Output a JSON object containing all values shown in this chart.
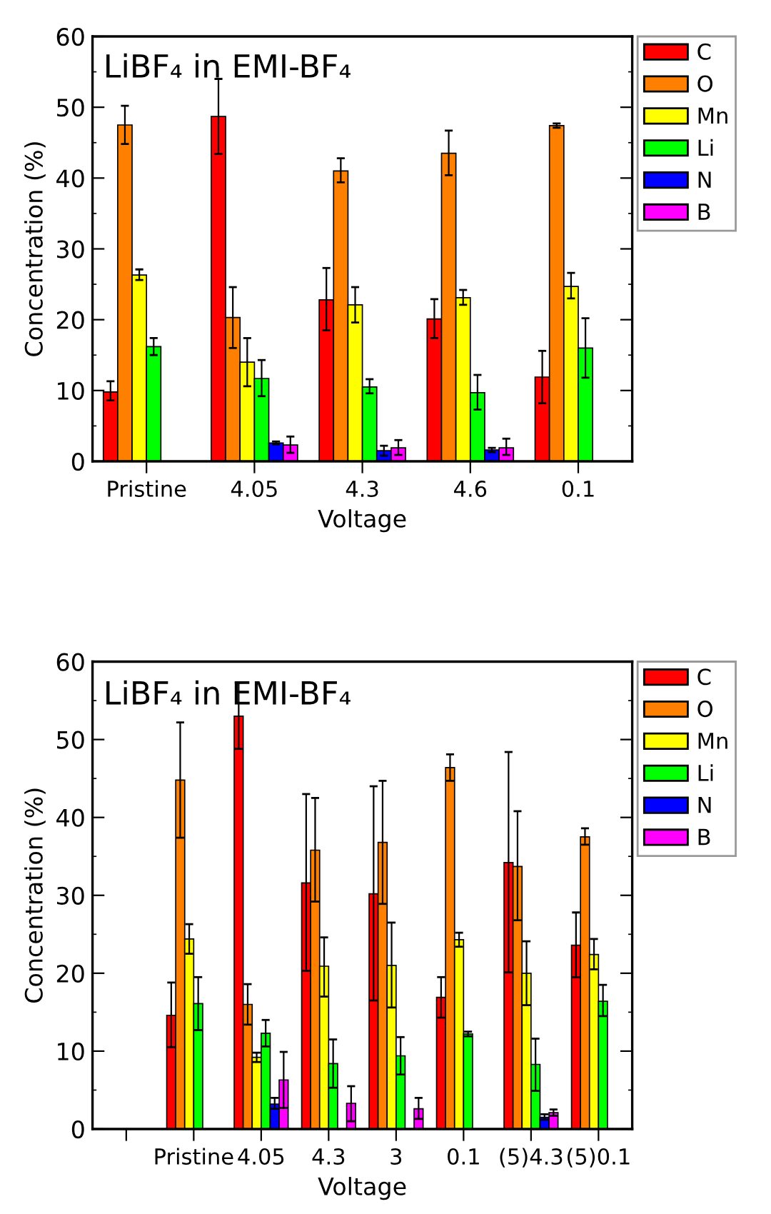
{
  "chart_data": [
    {
      "type": "bar",
      "title": "LiBF₄ in EMI-BF₄",
      "xlabel": "Voltage",
      "ylabel": "Concentration (%)",
      "categories": [
        "Pristine",
        "4.05",
        "4.3",
        "4.6",
        "0.1"
      ],
      "ylim": [
        0,
        60
      ],
      "yticks": [
        0,
        10,
        20,
        30,
        40,
        50,
        60
      ],
      "legend": "right",
      "grid": false,
      "series": [
        {
          "name": "C",
          "color": "#ff0000",
          "values": [
            9.8,
            48.7,
            22.8,
            20.1,
            11.9
          ],
          "errors": [
            [
              8.6,
              11.3
            ],
            [
              43.4,
              54.0
            ],
            [
              18.5,
              27.3
            ],
            [
              17.4,
              22.9
            ],
            [
              8.2,
              15.6
            ]
          ]
        },
        {
          "name": "O",
          "color": "#ff8000",
          "values": [
            47.5,
            20.3,
            41.0,
            43.5,
            47.4
          ],
          "errors": [
            [
              44.8,
              50.2
            ],
            [
              16.0,
              24.6
            ],
            [
              39.4,
              42.8
            ],
            [
              40.4,
              46.7
            ],
            [
              47.1,
              47.7
            ]
          ]
        },
        {
          "name": "Mn",
          "color": "#ffff00",
          "values": [
            26.3,
            14.0,
            22.1,
            23.1,
            24.7
          ],
          "errors": [
            [
              25.6,
              27.1
            ],
            [
              10.6,
              17.4
            ],
            [
              19.6,
              24.6
            ],
            [
              22.1,
              24.2
            ],
            [
              23.0,
              26.6
            ]
          ]
        },
        {
          "name": "Li",
          "color": "#00ff00",
          "values": [
            16.2,
            11.7,
            10.5,
            9.7,
            16.0
          ],
          "errors": [
            [
              15.0,
              17.4
            ],
            [
              9.2,
              14.3
            ],
            [
              9.6,
              11.6
            ],
            [
              7.3,
              12.2
            ],
            [
              11.8,
              20.2
            ]
          ]
        },
        {
          "name": "N",
          "color": "#0000ff",
          "values": [
            null,
            2.6,
            1.5,
            1.6,
            null
          ],
          "errors": [
            null,
            [
              2.4,
              2.8
            ],
            [
              0.8,
              2.2
            ],
            [
              1.3,
              1.9
            ],
            null
          ]
        },
        {
          "name": "B",
          "color": "#ff00ff",
          "values": [
            null,
            2.3,
            1.9,
            1.9,
            null
          ],
          "errors": [
            null,
            [
              1.2,
              3.5
            ],
            [
              0.9,
              3.0
            ],
            [
              0.9,
              3.2
            ],
            null
          ]
        }
      ]
    },
    {
      "type": "bar",
      "title": "LiBF₄ in EMI-BF₄",
      "xlabel": "Voltage",
      "ylabel": "Concentration (%)",
      "categories": [
        null,
        "Pristine",
        "4.05",
        "4.3",
        "3",
        "0.1",
        "(5)4.3",
        "(5)0.1"
      ],
      "ylim": [
        0,
        60
      ],
      "yticks": [
        0,
        10,
        20,
        30,
        40,
        50,
        60
      ],
      "legend": "right",
      "grid": false,
      "series": [
        {
          "name": "C",
          "color": "#ff0000",
          "values": [
            null,
            14.6,
            53.0,
            31.6,
            30.2,
            16.9,
            34.2,
            23.6
          ],
          "errors": [
            null,
            [
              10.5,
              18.8
            ],
            [
              48.8,
              57.3
            ],
            [
              20.3,
              43.0
            ],
            [
              16.5,
              44.0
            ],
            [
              14.3,
              19.5
            ],
            [
              20.1,
              48.4
            ],
            [
              19.5,
              27.8
            ]
          ]
        },
        {
          "name": "O",
          "color": "#ff8000",
          "values": [
            null,
            44.8,
            16.0,
            35.8,
            36.8,
            46.4,
            33.7,
            37.5
          ],
          "errors": [
            null,
            [
              37.4,
              52.2
            ],
            [
              13.4,
              18.6
            ],
            [
              29.2,
              42.5
            ],
            [
              28.9,
              44.7
            ],
            [
              44.7,
              48.1
            ],
            [
              26.8,
              40.8
            ],
            [
              36.5,
              38.6
            ]
          ]
        },
        {
          "name": "Mn",
          "color": "#ffff00",
          "values": [
            null,
            24.4,
            9.2,
            20.9,
            21.0,
            24.3,
            20.0,
            22.4
          ],
          "errors": [
            null,
            [
              22.5,
              26.3
            ],
            [
              8.6,
              9.8
            ],
            [
              17.0,
              24.6
            ],
            [
              15.6,
              26.5
            ],
            [
              23.4,
              25.2
            ],
            [
              15.9,
              24.1
            ],
            [
              20.5,
              24.4
            ]
          ]
        },
        {
          "name": "Li",
          "color": "#00ff00",
          "values": [
            null,
            16.1,
            12.3,
            8.4,
            9.4,
            12.2,
            8.3,
            16.4
          ],
          "errors": [
            null,
            [
              12.7,
              19.5
            ],
            [
              10.6,
              14.0
            ],
            [
              5.3,
              11.5
            ],
            [
              7.0,
              11.8
            ],
            [
              11.9,
              12.5
            ],
            [
              4.9,
              11.6
            ],
            [
              14.5,
              18.5
            ]
          ]
        },
        {
          "name": "N",
          "color": "#0000ff",
          "values": [
            null,
            null,
            3.2,
            null,
            null,
            null,
            1.5,
            null
          ],
          "errors": [
            null,
            null,
            [
              2.6,
              4.0
            ],
            null,
            null,
            null,
            [
              1.2,
              1.9
            ],
            null
          ]
        },
        {
          "name": "B",
          "color": "#ff00ff",
          "values": [
            null,
            null,
            6.3,
            3.3,
            2.6,
            null,
            2.1,
            null
          ],
          "errors": [
            null,
            null,
            [
              2.7,
              9.9
            ],
            [
              1.0,
              5.5
            ],
            [
              1.3,
              4.0
            ],
            null,
            [
              1.7,
              2.5
            ],
            null
          ]
        }
      ]
    }
  ]
}
